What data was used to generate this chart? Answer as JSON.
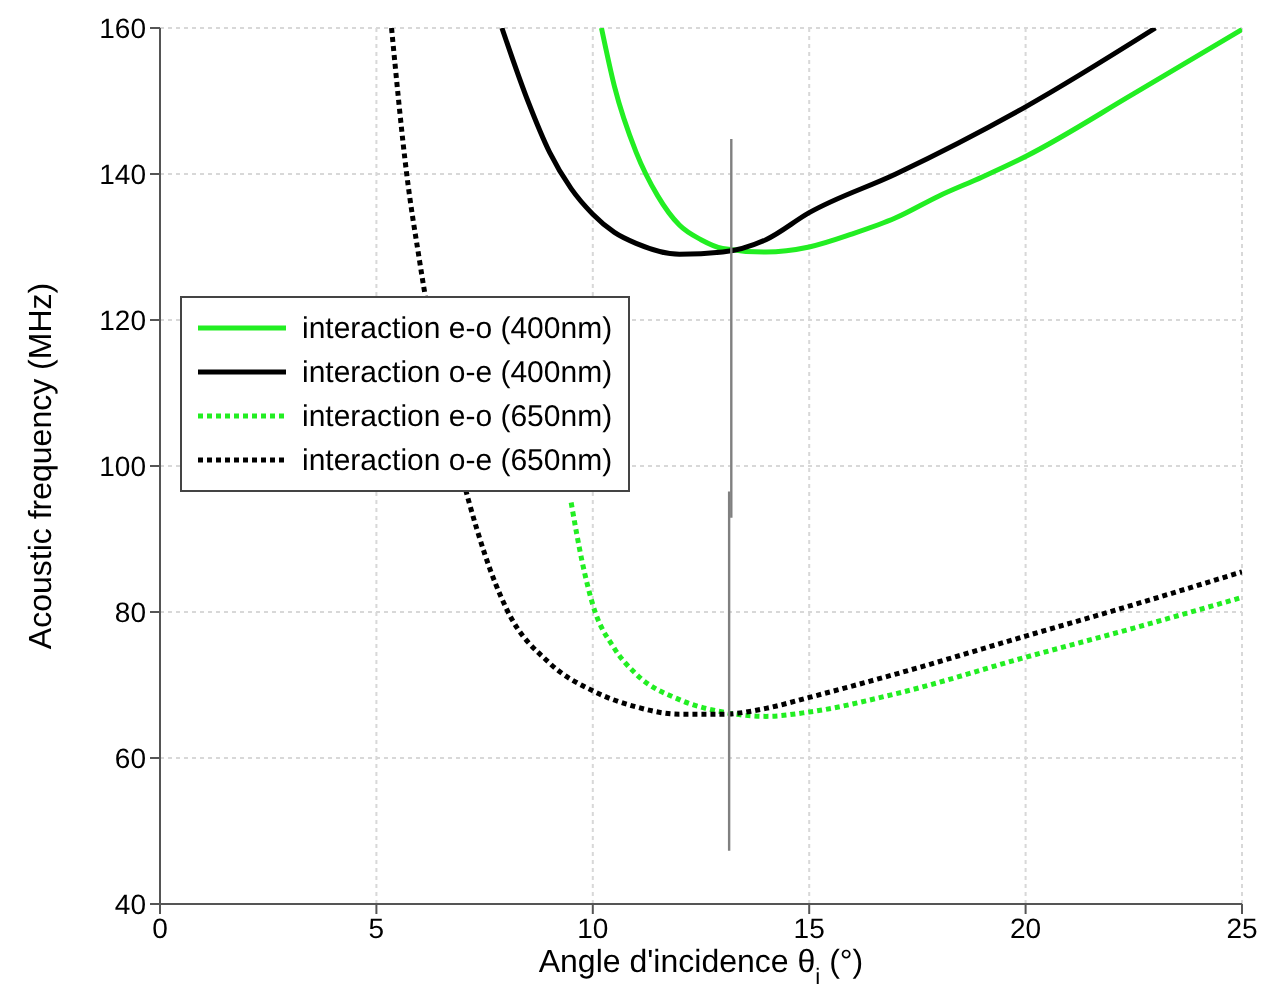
{
  "chart_data": {
    "type": "line",
    "xlabel": "Angle d'incidence θ$_{i}$ (°)",
    "ylabel": "Acoustic frequency (MHz)",
    "xlim": [
      0,
      25
    ],
    "xticks": [
      0,
      5,
      10,
      15,
      20,
      25
    ],
    "ylim": [
      40,
      160
    ],
    "yticks": [
      40,
      60,
      80,
      100,
      120,
      140,
      160
    ],
    "grid": true,
    "legend": "left",
    "marker": "none",
    "series": [
      {
        "name": "interaction e-o (400nm)",
        "color": "#22ee22",
        "line_style": "solid",
        "x": [
          10.2,
          10.5,
          11,
          11.5,
          12,
          12.5,
          13,
          14,
          15,
          16,
          17,
          18,
          19,
          20,
          22.5,
          25
        ],
        "values": [
          160,
          152,
          143,
          137,
          133,
          131,
          129.8,
          129.3,
          130,
          131.8,
          134,
          137,
          139.6,
          142.4,
          151,
          159.8
        ]
      },
      {
        "name": "interaction o-e (400nm)",
        "color": "#000000",
        "line_style": "solid",
        "x": [
          7.9,
          8.5,
          9,
          9.5,
          10,
          10.5,
          11,
          12,
          13,
          14,
          15,
          17,
          20,
          23
        ],
        "values": [
          160,
          150,
          143,
          138,
          134.5,
          132,
          130.5,
          129,
          129.3,
          131,
          134.7,
          140,
          149.2,
          160
        ]
      },
      {
        "name": "interaction e-o (650nm)",
        "color": "#22ee22",
        "line_style": "dotted",
        "x": [
          9.5,
          9.75,
          10,
          10.5,
          11,
          12,
          13,
          14,
          15,
          17,
          20,
          22.5,
          25
        ],
        "values": [
          95,
          87,
          81,
          75,
          71.5,
          68,
          66.3,
          65.7,
          66.3,
          68.8,
          73.8,
          77.8,
          82
        ]
      },
      {
        "name": "interaction o-e (650nm)",
        "color": "#000000",
        "line_style": "dotted",
        "x": [
          5.35,
          5.7,
          6,
          7.5,
          8,
          9,
          10,
          11,
          12,
          13,
          14,
          15,
          17,
          20,
          22.5,
          25
        ],
        "values": [
          160,
          140,
          128,
          88,
          80.5,
          73,
          69.2,
          67,
          66,
          66,
          66.8,
          68.3,
          71.5,
          76.7,
          81,
          85.5
        ]
      },
      {
        "color": "#808080",
        "line_style": "solid",
        "x": [
          13.2,
          13.2
        ],
        "values": [
          92.9,
          144.8
        ]
      },
      {
        "color": "#808080",
        "line_style": "solid",
        "x": [
          13.15,
          13.15
        ],
        "values": [
          47.3,
          96.5
        ]
      }
    ]
  }
}
